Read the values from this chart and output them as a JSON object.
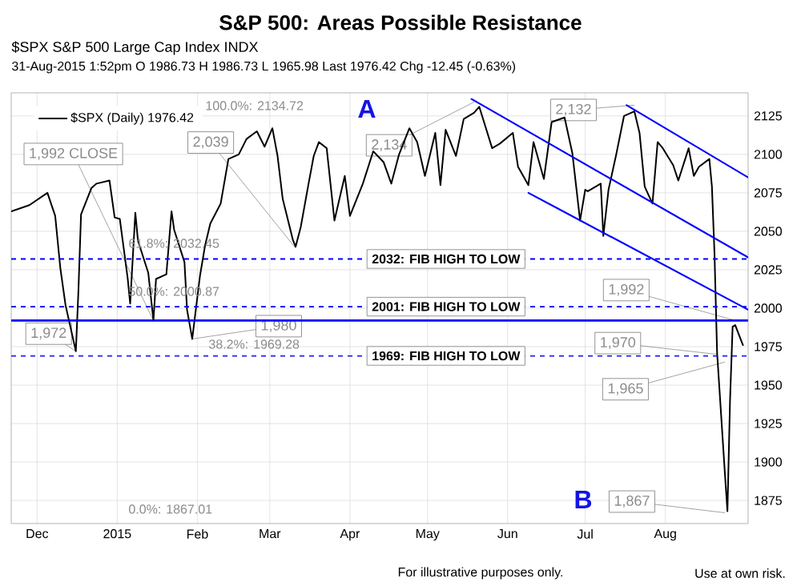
{
  "chart_data": {
    "type": "line",
    "title": "S&P 500: Areas Possible Resistance",
    "subtitle": "$SPX S&P 500 Large Cap Index INDX",
    "xlim": [
      "2014-11-21",
      "2015-09-02"
    ],
    "xticks": [
      {
        "value": "2014-12-01",
        "label": "Dec"
      },
      {
        "value": "2015-01-01",
        "label": "2015"
      },
      {
        "value": "2015-02-01",
        "label": "Feb"
      },
      {
        "value": "2015-03-01",
        "label": "Mar"
      },
      {
        "value": "2015-04-01",
        "label": "Apr"
      },
      {
        "value": "2015-05-01",
        "label": "May"
      },
      {
        "value": "2015-06-01",
        "label": "Jun"
      },
      {
        "value": "2015-07-01",
        "label": "Jul"
      },
      {
        "value": "2015-08-01",
        "label": "Aug"
      }
    ],
    "ylim": [
      1860,
      2140
    ],
    "yticks": [
      1875,
      1900,
      1925,
      1950,
      1975,
      2000,
      2025,
      2050,
      2075,
      2100,
      2125
    ],
    "grid": true,
    "legend": "top left",
    "series": [
      {
        "name": "$SPX (Daily) 1976.42",
        "color": "#000000",
        "x": [
          "2014-11-21",
          "2014-11-28",
          "2014-12-05",
          "2014-12-08",
          "2014-12-10",
          "2014-12-12",
          "2014-12-16",
          "2014-12-17",
          "2014-12-18",
          "2014-12-22",
          "2014-12-24",
          "2014-12-29",
          "2014-12-31",
          "2015-01-02",
          "2015-01-05",
          "2015-01-06",
          "2015-01-08",
          "2015-01-09",
          "2015-01-13",
          "2015-01-15",
          "2015-01-16",
          "2015-01-20",
          "2015-01-22",
          "2015-01-23",
          "2015-01-27",
          "2015-01-28",
          "2015-01-30",
          "2015-02-02",
          "2015-02-04",
          "2015-02-06",
          "2015-02-10",
          "2015-02-13",
          "2015-02-17",
          "2015-02-20",
          "2015-02-24",
          "2015-02-27",
          "2015-03-02",
          "2015-03-04",
          "2015-03-06",
          "2015-03-10",
          "2015-03-11",
          "2015-03-13",
          "2015-03-16",
          "2015-03-18",
          "2015-03-20",
          "2015-03-23",
          "2015-03-26",
          "2015-03-30",
          "2015-04-01",
          "2015-04-06",
          "2015-04-10",
          "2015-04-14",
          "2015-04-17",
          "2015-04-20",
          "2015-04-24",
          "2015-04-27",
          "2015-04-30",
          "2015-05-04",
          "2015-05-06",
          "2015-05-08",
          "2015-05-12",
          "2015-05-15",
          "2015-05-19",
          "2015-05-21",
          "2015-05-26",
          "2015-05-29",
          "2015-06-03",
          "2015-06-05",
          "2015-06-09",
          "2015-06-11",
          "2015-06-15",
          "2015-06-18",
          "2015-06-23",
          "2015-06-26",
          "2015-06-29",
          "2015-07-01",
          "2015-07-02",
          "2015-07-07",
          "2015-07-08",
          "2015-07-10",
          "2015-07-13",
          "2015-07-16",
          "2015-07-20",
          "2015-07-22",
          "2015-07-24",
          "2015-07-27",
          "2015-07-29",
          "2015-07-31",
          "2015-08-04",
          "2015-08-06",
          "2015-08-10",
          "2015-08-12",
          "2015-08-14",
          "2015-08-18",
          "2015-08-19",
          "2015-08-20",
          "2015-08-21",
          "2015-08-24",
          "2015-08-25",
          "2015-08-26",
          "2015-08-27",
          "2015-08-28",
          "2015-08-31"
        ],
        "values": [
          2063,
          2067,
          2075,
          2060,
          2026,
          2002,
          1972,
          2012,
          2061,
          2078,
          2081,
          2083,
          2059,
          2058,
          2020,
          2003,
          2062,
          2044,
          2023,
          1992,
          2019,
          2022,
          2063,
          2051,
          2030,
          1999,
          1980,
          2021,
          2041,
          2055,
          2068,
          2097,
          2100,
          2110,
          2115,
          2105,
          2117,
          2099,
          2071,
          2044,
          2040,
          2053,
          2081,
          2099,
          2108,
          2104,
          2057,
          2086,
          2060,
          2081,
          2102,
          2095,
          2081,
          2100,
          2117,
          2108,
          2086,
          2114,
          2080,
          2116,
          2099,
          2123,
          2127,
          2131,
          2104,
          2107,
          2114,
          2092,
          2080,
          2108,
          2084,
          2121,
          2124,
          2101,
          2057,
          2077,
          2076,
          2081,
          2047,
          2077,
          2100,
          2125,
          2128,
          2114,
          2079,
          2068,
          2108,
          2104,
          2093,
          2083,
          2104,
          2086,
          2092,
          2097,
          2079,
          2035,
          1971,
          1893,
          1868,
          1940,
          1988,
          1989,
          1976
        ]
      },
      {
        "color": "#0000ff",
        "x": [
          "2015-05-18",
          "2015-09-02"
        ],
        "values": [
          2136,
          2033
        ]
      },
      {
        "color": "#0000ff",
        "x": [
          "2015-07-17",
          "2015-09-02"
        ],
        "values": [
          2132,
          2085
        ]
      },
      {
        "color": "#0000ff",
        "x": [
          "2015-06-09",
          "2015-09-02"
        ],
        "values": [
          2075,
          1999
        ]
      }
    ],
    "ref_lines": [
      {
        "axis": "y",
        "value": 2032,
        "label": "2032: FIB HIGH TO LOW",
        "color": "#0000ff",
        "line_style": "dashed"
      },
      {
        "axis": "y",
        "value": 2001,
        "label": "2001:  FIB HIGH TO LOW",
        "color": "#0000ff",
        "line_style": "dashed"
      },
      {
        "axis": "y",
        "value": 1992,
        "color": "#0000ff",
        "line_style": "solid"
      },
      {
        "axis": "y",
        "value": 1969,
        "label": "1969: FIB HIGH TO LOW",
        "color": "#0000ff",
        "line_style": "dashed"
      }
    ],
    "annotations": [
      {
        "text": "1,992 CLOSE",
        "x": "2015-01-15",
        "y": 1992
      },
      {
        "text": "2,039",
        "x": "2015-03-11",
        "y": 2039
      },
      {
        "text": "2,134",
        "x": "2015-05-19",
        "y": 2134
      },
      {
        "text": "2,132",
        "x": "2015-07-20",
        "y": 2132
      },
      {
        "text": "1,972",
        "x": "2014-12-16",
        "y": 1972
      },
      {
        "text": "1,980",
        "x": "2015-01-30",
        "y": 1980
      },
      {
        "text": "1,992",
        "x": "2015-08-28",
        "y": 1992
      },
      {
        "text": "1,970",
        "x": "2015-08-21",
        "y": 1970
      },
      {
        "text": "1,965",
        "x": "2015-08-24",
        "y": 1965
      },
      {
        "text": "1,867",
        "x": "2015-08-24",
        "y": 1867
      },
      "A",
      "B",
      "100.0%: 2134.72",
      "61.8%: 2032.45",
      "50.0%: 2000.87",
      "38.2%: 1969.28",
      "0.0%: 1867.01",
      "31-Aug-2015 1:52pm   O 1986.73  H 1986.73  L 1965.98  Last 1976.42  Chg -12.45 (-0.63%)",
      "For illustrative purposes only.",
      "Use at own risk."
    ]
  }
}
